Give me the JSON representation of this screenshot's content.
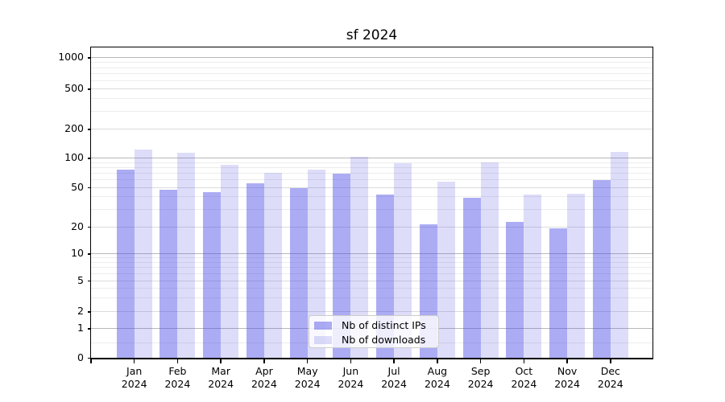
{
  "chart_data": {
    "type": "bar",
    "title": "sf 2024",
    "categories": [
      {
        "month": "Jan",
        "year": "2024"
      },
      {
        "month": "Feb",
        "year": "2024"
      },
      {
        "month": "Mar",
        "year": "2024"
      },
      {
        "month": "Apr",
        "year": "2024"
      },
      {
        "month": "May",
        "year": "2024"
      },
      {
        "month": "Jun",
        "year": "2024"
      },
      {
        "month": "Jul",
        "year": "2024"
      },
      {
        "month": "Aug",
        "year": "2024"
      },
      {
        "month": "Sep",
        "year": "2024"
      },
      {
        "month": "Oct",
        "year": "2024"
      },
      {
        "month": "Nov",
        "year": "2024"
      },
      {
        "month": "Dec",
        "year": "2024"
      }
    ],
    "series": [
      {
        "name": "Nb of distinct IPs",
        "key": "distinct-ips",
        "color": "#aaaaf2",
        "color_rgba": "rgba(70,70,230,0.45)",
        "values": [
          75,
          47,
          44,
          55,
          49,
          69,
          42,
          21,
          39,
          22,
          19,
          59
        ]
      },
      {
        "name": "Nb of downloads",
        "key": "downloads",
        "color": "#dcdcf8",
        "color_rgba": "rgba(85,85,225,0.20)",
        "values": [
          121,
          112,
          84,
          70,
          76,
          103,
          87,
          57,
          90,
          42,
          43,
          115
        ]
      }
    ],
    "y_axis": {
      "scale": "symlog",
      "ticks": [
        0,
        1,
        2,
        5,
        10,
        20,
        50,
        100,
        200,
        500,
        1000
      ],
      "decade_ticks": [
        1,
        10,
        100,
        1000
      ],
      "minor_ticks": [
        0.5,
        3,
        4,
        6,
        7,
        8,
        9,
        30,
        40,
        60,
        70,
        80,
        90,
        300,
        400,
        600,
        700,
        800,
        900
      ],
      "ylim": [
        0,
        1200
      ]
    },
    "grid": true,
    "legend_position": "lower center",
    "colors": {
      "grid_decade": "#b8b8b8",
      "grid_labeled": "#dbdbdb",
      "grid_minor": "#ececec",
      "axis": "#000000",
      "text": "#000000"
    }
  }
}
